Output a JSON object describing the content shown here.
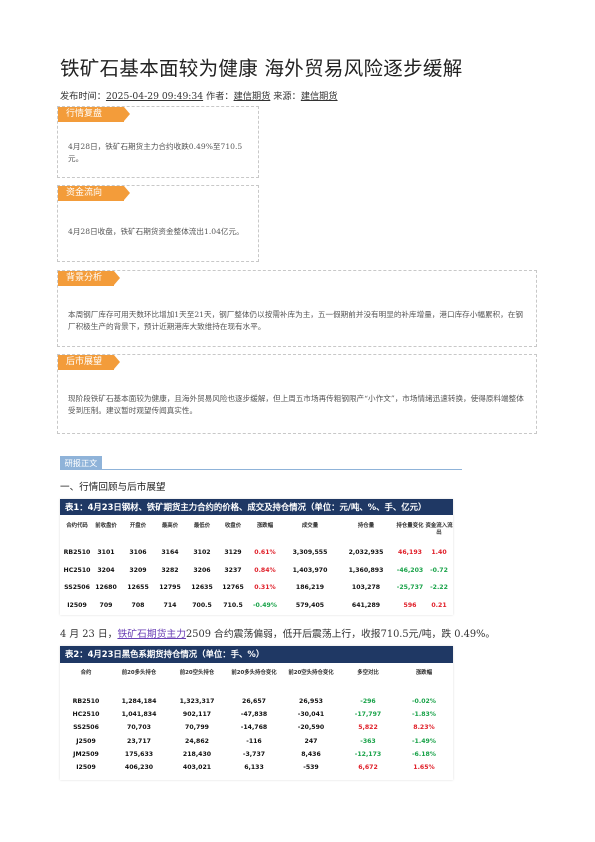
{
  "title": "铁矿石基本面较为健康 海外贸易风险逐步缓解",
  "meta": {
    "prefix": "发布时间：",
    "datetime": "2025-04-29 09:49:34",
    "author_label": " 作者：",
    "author": "建信期货",
    "source_label": " 来源：",
    "source": "建信期货"
  },
  "sections": [
    {
      "tag": "行情复盘",
      "text": "4月28日，铁矿石期货主力合约收跌0.49%至710.5元。"
    },
    {
      "tag": "资金流向",
      "text": "4月28日收盘，铁矿石期货资金整体流出1.04亿元。"
    },
    {
      "tag": "背景分析",
      "text": "本周钢厂库存可用天数环比增加1天至21天，钢厂整体仍以按需补库为主，五一假期前并没有明显的补库增量，港口库存小幅累积，在钢厂积极生产的背景下，预计近期港库大致维持在现有水平。"
    },
    {
      "tag": "后市展望",
      "text": "现阶段铁矿石基本面较为健康，且海外贸易风险也逐步缓解，但上周五市场再传粗钢限产“小作文”，市场情绪迅速转换，使得原料端整体受到压制。建议暂时观望传闻真实性。"
    }
  ],
  "research_tag": "研报正文",
  "heading1": "一、行情回顾与后市展望",
  "table1": {
    "title": "表1：4月23日钢材、铁矿期货主力合约的价格、成交及持仓情况（单位：元/吨、%、手、亿元）",
    "headers": [
      "合约代码",
      "前收盘价",
      "开盘价",
      "最高价",
      "最低价",
      "收盘价",
      "涨跌幅",
      "成交量",
      "持仓量",
      "持仓量变化",
      "资金流入流出"
    ],
    "rows": [
      [
        "RB2510",
        "3101",
        "3106",
        "3164",
        "3102",
        "3129",
        "0.61%",
        "3,309,555",
        "2,032,935",
        "46,193",
        "1.40"
      ],
      [
        "HC2510",
        "3204",
        "3209",
        "3282",
        "3206",
        "3237",
        "0.84%",
        "1,403,970",
        "1,360,893",
        "-46,203",
        "-0.72"
      ],
      [
        "SS2506",
        "12680",
        "12655",
        "12795",
        "12635",
        "12765",
        "0.31%",
        "186,219",
        "103,278",
        "-25,737",
        "-2.22"
      ],
      [
        "I2509",
        "709",
        "708",
        "714",
        "700.5",
        "710.5",
        "-0.49%",
        "579,405",
        "641,289",
        "596",
        "0.21"
      ]
    ]
  },
  "para": {
    "pre": "4 月 23 日，",
    "link": "铁矿石期货主力",
    "post": "2509 合约震荡偏弱，低开后震荡上行，收报710.5元/吨，跌 0.49%。"
  },
  "table2": {
    "title": "表2：4月23日黑色系期货持仓情况（单位：手、%）",
    "headers": [
      "合约",
      "前20多头持仓",
      "前20空头持仓",
      "前20多头持仓变化",
      "前20空头持仓变化",
      "多空对比",
      "涨跌幅"
    ],
    "rows": [
      [
        "RB2510",
        "1,284,184",
        "1,323,317",
        "26,657",
        "26,953",
        "-296",
        "-0.02%"
      ],
      [
        "HC2510",
        "1,041,834",
        "902,117",
        "-47,838",
        "-30,041",
        "-17,797",
        "-1.83%"
      ],
      [
        "SS2506",
        "70,703",
        "70,799",
        "-14,768",
        "-20,590",
        "5,822",
        "8.23%"
      ],
      [
        "J2509",
        "23,717",
        "24,862",
        "-116",
        "247",
        "-363",
        "-1.49%"
      ],
      [
        "JM2509",
        "175,633",
        "218,430",
        "-3,737",
        "8,436",
        "-12,173",
        "-6.18%"
      ],
      [
        "I2509",
        "406,230",
        "403,021",
        "6,133",
        "-539",
        "6,672",
        "1.65%"
      ]
    ]
  }
}
